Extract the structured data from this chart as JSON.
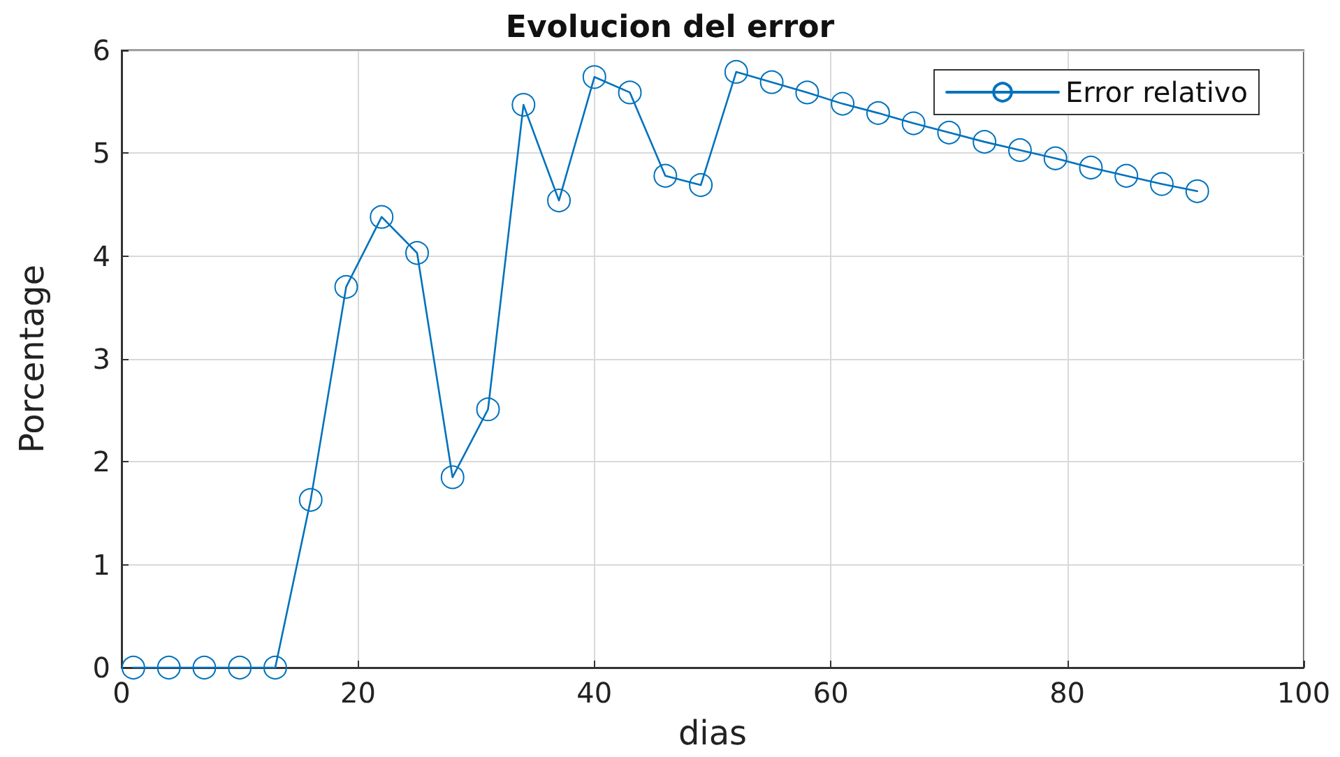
{
  "chart_data": {
    "type": "line",
    "title": "Evolucion del error",
    "xlabel": "dias",
    "ylabel": "Porcentage",
    "x": [
      1,
      4,
      7,
      10,
      13,
      16,
      19,
      22,
      25,
      28,
      31,
      34,
      37,
      40,
      43,
      46,
      49,
      52,
      55,
      58,
      61,
      64,
      67,
      70,
      73,
      76,
      79,
      82,
      85,
      88,
      91
    ],
    "series": [
      {
        "name": "Error relativo",
        "color": "#0072bd",
        "values": [
          0,
          0,
          0,
          0,
          0,
          1.63,
          3.7,
          4.38,
          4.03,
          1.85,
          2.51,
          5.47,
          4.54,
          5.74,
          5.59,
          4.78,
          4.69,
          5.79,
          5.69,
          5.59,
          5.48,
          5.39,
          5.29,
          5.2,
          5.11,
          5.03,
          4.95,
          4.86,
          4.78,
          4.7,
          4.63
        ]
      }
    ],
    "xlim": [
      0,
      100
    ],
    "xticks": [
      0,
      20,
      40,
      60,
      80,
      100
    ],
    "ylim": [
      0,
      6
    ],
    "yticks": [
      0,
      1,
      2,
      3,
      4,
      5,
      6
    ],
    "grid": true,
    "legend": "top right",
    "marker": "circle",
    "line_style": "solid"
  }
}
